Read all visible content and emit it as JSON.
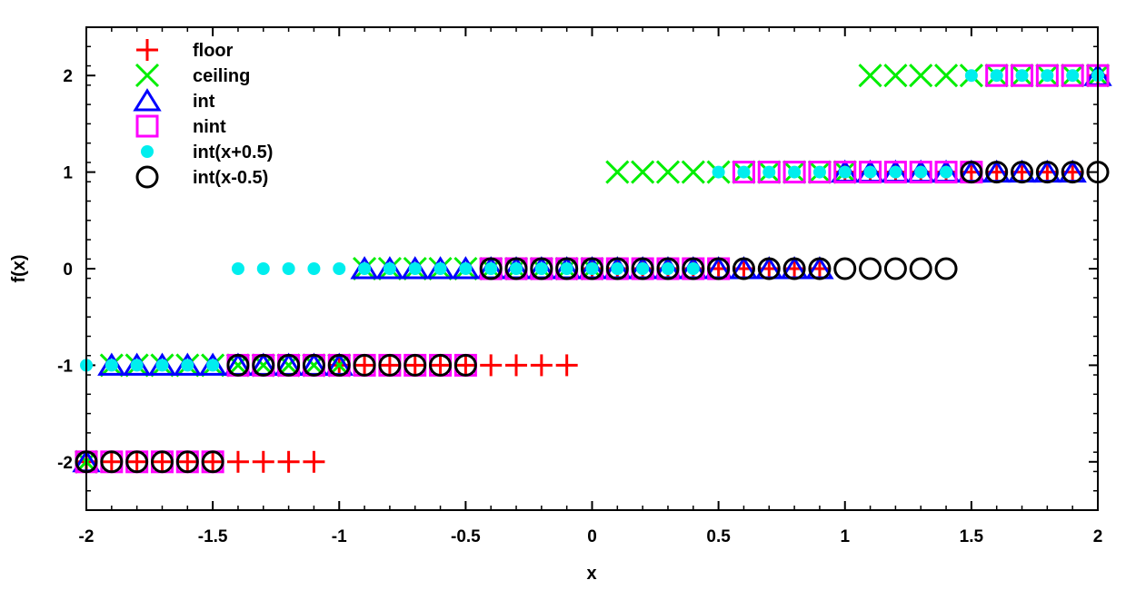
{
  "chart_data": {
    "type": "scatter",
    "xlabel": "x",
    "ylabel": "f(x)",
    "xlim": [
      -2,
      2
    ],
    "ylim": [
      -2.5,
      2.5
    ],
    "xticks": [
      "-2",
      "-1.5",
      "-1",
      "-0.5",
      "0",
      "0.5",
      "1",
      "1.5",
      "2"
    ],
    "yticks": [
      "-2",
      "-1",
      "0",
      "1",
      "2"
    ],
    "legend_position": "top-left",
    "x": [
      -2.0,
      -1.9,
      -1.8,
      -1.7,
      -1.6,
      -1.5,
      -1.4,
      -1.3,
      -1.2,
      -1.1,
      -1.0,
      -0.9,
      -0.8,
      -0.7,
      -0.6,
      -0.5,
      -0.4,
      -0.3,
      -0.2,
      -0.1,
      0.0,
      0.1,
      0.2,
      0.3,
      0.4,
      0.5,
      0.6,
      0.7,
      0.8,
      0.9,
      1.0,
      1.1,
      1.2,
      1.3,
      1.4,
      1.5,
      1.6,
      1.7,
      1.8,
      1.9,
      2.0
    ],
    "series": [
      {
        "name": "floor",
        "marker": "plus",
        "color": "#ff0000",
        "values": [
          -2,
          -2,
          -2,
          -2,
          -2,
          -2,
          -2,
          -2,
          -2,
          -2,
          -1,
          -1,
          -1,
          -1,
          -1,
          -1,
          -1,
          -1,
          -1,
          -1,
          0,
          0,
          0,
          0,
          0,
          0,
          0,
          0,
          0,
          0,
          1,
          1,
          1,
          1,
          1,
          1,
          1,
          1,
          1,
          1,
          2
        ]
      },
      {
        "name": "ceiling",
        "marker": "cross",
        "color": "#00ee00",
        "values": [
          -2,
          -1,
          -1,
          -1,
          -1,
          -1,
          -1,
          -1,
          -1,
          -1,
          -1,
          0,
          0,
          0,
          0,
          0,
          0,
          0,
          0,
          0,
          0,
          1,
          1,
          1,
          1,
          1,
          1,
          1,
          1,
          1,
          1,
          2,
          2,
          2,
          2,
          2,
          2,
          2,
          2,
          2,
          2
        ]
      },
      {
        "name": "int",
        "marker": "triangle",
        "color": "#0000ff",
        "values": [
          -2,
          -1,
          -1,
          -1,
          -1,
          -1,
          -1,
          -1,
          -1,
          -1,
          -1,
          0,
          0,
          0,
          0,
          0,
          0,
          0,
          0,
          0,
          0,
          0,
          0,
          0,
          0,
          0,
          0,
          0,
          0,
          0,
          1,
          1,
          1,
          1,
          1,
          1,
          1,
          1,
          1,
          1,
          2
        ]
      },
      {
        "name": "nint",
        "marker": "square",
        "color": "#ff00ff",
        "values": [
          -2,
          -2,
          -2,
          -2,
          -2,
          -2,
          -1,
          -1,
          -1,
          -1,
          -1,
          -1,
          -1,
          -1,
          -1,
          -1,
          0,
          0,
          0,
          0,
          0,
          0,
          0,
          0,
          0,
          0,
          1,
          1,
          1,
          1,
          1,
          1,
          1,
          1,
          1,
          1,
          2,
          2,
          2,
          2,
          2
        ]
      },
      {
        "name": "int(x+0.5)",
        "marker": "dot",
        "color": "#00eeee",
        "values": [
          -1,
          -1,
          -1,
          -1,
          -1,
          -1,
          0,
          0,
          0,
          0,
          0,
          0,
          0,
          0,
          0,
          0,
          0,
          0,
          0,
          0,
          0,
          0,
          0,
          0,
          0,
          1,
          1,
          1,
          1,
          1,
          1,
          1,
          1,
          1,
          1,
          2,
          2,
          2,
          2,
          2,
          2
        ]
      },
      {
        "name": "int(x-0.5)",
        "marker": "circle",
        "color": "#000000",
        "values": [
          -2,
          -2,
          -2,
          -2,
          -2,
          -2,
          -1,
          -1,
          -1,
          -1,
          -1,
          -1,
          -1,
          -1,
          -1,
          -1,
          0,
          0,
          0,
          0,
          0,
          0,
          0,
          0,
          0,
          0,
          0,
          0,
          0,
          0,
          0,
          0,
          0,
          0,
          0,
          1,
          1,
          1,
          1,
          1,
          1
        ]
      }
    ]
  }
}
